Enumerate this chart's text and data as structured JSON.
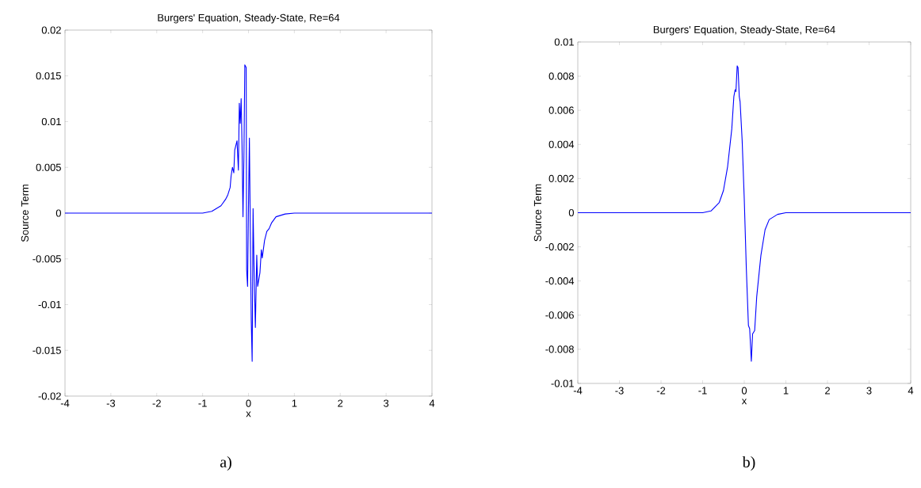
{
  "chart_data": [
    {
      "type": "line",
      "title": "Burgers' Equation, Steady-State, Re=64",
      "xlabel": "x",
      "ylabel": "Source Term",
      "x": [
        -4,
        -3,
        -2,
        -1,
        -0.8,
        -0.6,
        -0.5,
        -0.45,
        -0.4,
        -0.38,
        -0.35,
        -0.32,
        -0.3,
        -0.25,
        -0.22,
        -0.2,
        -0.18,
        -0.16,
        -0.14,
        -0.12,
        -0.1,
        -0.08,
        -0.05,
        -0.04,
        -0.02,
        0,
        0.02,
        0.04,
        0.06,
        0.08,
        0.1,
        0.12,
        0.15,
        0.18,
        0.2,
        0.25,
        0.28,
        0.3,
        0.35,
        0.4,
        0.45,
        0.5,
        0.6,
        0.8,
        1,
        2,
        3,
        4
      ],
      "series": [
        {
          "color": "#0000ff",
          "values": [
            0,
            0,
            0,
            0,
            0.0002,
            0.0008,
            0.0015,
            0.002,
            0.0028,
            0.004,
            0.005,
            0.0044,
            0.0069,
            0.0079,
            0.0047,
            0.012,
            0.0098,
            0.0125,
            0.0072,
            -0.0004,
            0.006,
            0.0162,
            0.0159,
            -0.0062,
            -0.008,
            0.0008,
            0.0082,
            -0.002,
            -0.0117,
            -0.0162,
            0.0005,
            -0.0056,
            -0.0125,
            -0.0046,
            -0.008,
            -0.0065,
            -0.004,
            -0.0049,
            -0.003,
            -0.002,
            -0.0017,
            -0.0011,
            -0.0004,
            -0.0001,
            0,
            0,
            0,
            0
          ]
        }
      ],
      "xlim": [
        -4,
        4
      ],
      "ylim": [
        -0.02,
        0.02
      ],
      "xticks": [
        -4,
        -3,
        -2,
        -1,
        0,
        1,
        2,
        3,
        4
      ],
      "yticks": [
        -0.02,
        -0.015,
        -0.01,
        -0.005,
        0,
        0.005,
        0.01,
        0.015,
        0.02
      ],
      "annotations": [
        "a)"
      ]
    },
    {
      "type": "line",
      "title": "Burgers' Equation, Steady-State, Re=64",
      "xlabel": "x",
      "ylabel": "Source Term",
      "x": [
        -4,
        -3,
        -2,
        -1,
        -0.8,
        -0.6,
        -0.5,
        -0.4,
        -0.3,
        -0.25,
        -0.22,
        -0.2,
        -0.17,
        -0.15,
        -0.12,
        -0.1,
        -0.05,
        0,
        0.05,
        0.1,
        0.13,
        0.17,
        0.2,
        0.25,
        0.3,
        0.4,
        0.5,
        0.6,
        0.8,
        1,
        2,
        3,
        4
      ],
      "series": [
        {
          "color": "#0000ff",
          "values": [
            0,
            0,
            0,
            0,
            0.0001,
            0.0006,
            0.0013,
            0.0027,
            0.0049,
            0.0068,
            0.0072,
            0.0071,
            0.0086,
            0.0085,
            0.0068,
            0.0065,
            0.0042,
            0.0008,
            -0.0033,
            -0.0066,
            -0.0068,
            -0.0087,
            -0.0071,
            -0.0069,
            -0.0049,
            -0.0025,
            -0.001,
            -0.0004,
            -0.0001,
            0,
            0,
            0,
            0
          ]
        }
      ],
      "xlim": [
        -4,
        4
      ],
      "ylim": [
        -0.01,
        0.01
      ],
      "xticks": [
        -4,
        -3,
        -2,
        -1,
        0,
        1,
        2,
        3,
        4
      ],
      "yticks": [
        -0.01,
        -0.008,
        -0.006,
        -0.004,
        -0.002,
        0,
        0.002,
        0.004,
        0.006,
        0.008,
        0.01
      ],
      "annotations": [
        "b)"
      ]
    }
  ]
}
